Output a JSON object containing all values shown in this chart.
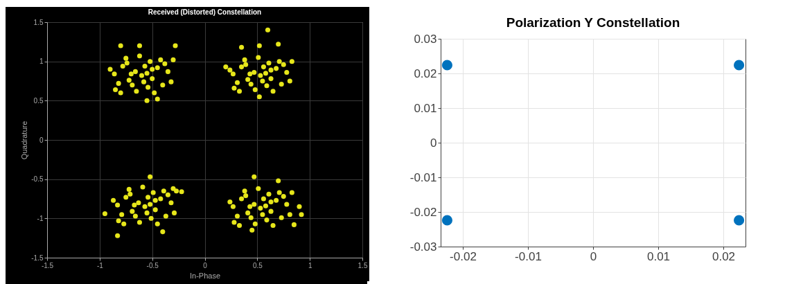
{
  "chart_data": [
    {
      "type": "scatter",
      "title": "Received (Distorted) Constellation",
      "xlabel": "In-Phase",
      "ylabel": "Quadrature",
      "xlim": [
        -1.5,
        1.5
      ],
      "ylim": [
        -1.5,
        1.5
      ],
      "xticks": [
        -1.5,
        -1,
        -0.5,
        0,
        0.5,
        1,
        1.5
      ],
      "yticks": [
        -1.5,
        -1,
        -0.5,
        0,
        0.5,
        1,
        1.5
      ],
      "grid": true,
      "marker": "circle",
      "series": [
        {
          "color": "#e6e61a",
          "x": [
            -0.6,
            -0.55,
            -0.66,
            -0.5,
            -0.72,
            -0.45,
            -0.78,
            -0.4,
            -0.82,
            -0.52,
            -0.65,
            -0.35,
            -0.86,
            -0.48,
            -0.75,
            -0.57,
            -0.69,
            -0.42,
            -0.8,
            -0.32,
            -0.9,
            -0.58,
            -0.62,
            -0.5,
            -0.7,
            -0.38,
            -0.85,
            -0.54,
            -0.74,
            -0.3,
            -0.55,
            -0.45,
            -0.8,
            -0.28,
            -0.62,
            0.53,
            0.58,
            0.47,
            0.63,
            0.41,
            0.68,
            0.35,
            0.73,
            0.31,
            0.61,
            0.48,
            0.78,
            0.27,
            0.65,
            0.38,
            0.56,
            0.44,
            0.71,
            0.33,
            0.81,
            0.24,
            0.55,
            0.51,
            0.63,
            0.43,
            0.75,
            0.28,
            0.59,
            0.39,
            0.83,
            0.6,
            0.52,
            0.7,
            0.35,
            0.2,
            0.52,
            -0.57,
            -0.52,
            -0.63,
            -0.47,
            -0.69,
            -0.42,
            -0.75,
            -0.37,
            -0.79,
            -0.49,
            -0.62,
            -0.32,
            -0.83,
            -0.45,
            -0.72,
            -0.54,
            -0.66,
            -0.39,
            -0.77,
            -0.29,
            -0.87,
            -0.55,
            -0.59,
            -0.47,
            -0.67,
            -0.35,
            -0.82,
            -0.51,
            -0.71,
            -0.27,
            -0.52,
            -0.22,
            -0.83,
            -0.4,
            -0.95,
            -0.3,
            0.53,
            0.58,
            0.47,
            0.63,
            0.41,
            0.68,
            0.35,
            0.73,
            0.31,
            0.61,
            0.48,
            0.78,
            0.27,
            0.65,
            0.38,
            0.56,
            0.44,
            0.71,
            0.33,
            0.81,
            0.24,
            0.55,
            0.51,
            0.63,
            0.43,
            0.75,
            0.28,
            0.59,
            0.39,
            0.83,
            0.47,
            0.7,
            0.9,
            0.92,
            0.45,
            0.85
          ],
          "values": [
            0.82,
            0.85,
            0.87,
            0.78,
            0.76,
            0.92,
            0.94,
            0.7,
            0.72,
            1.0,
            0.62,
            0.87,
            0.84,
            0.6,
            1.04,
            0.94,
            0.7,
            1.02,
            0.6,
            0.74,
            0.9,
            0.74,
            1.07,
            0.9,
            0.84,
            0.97,
            0.64,
            0.67,
            0.98,
            1.02,
            0.5,
            0.52,
            1.2,
            1.2,
            1.2,
            0.82,
            0.85,
            0.86,
            0.78,
            0.77,
            0.91,
            0.93,
            0.71,
            0.73,
            0.98,
            0.64,
            0.86,
            0.84,
            0.62,
            1.02,
            0.93,
            0.71,
            1.0,
            0.62,
            0.75,
            0.89,
            0.75,
            1.05,
            0.89,
            0.84,
            0.96,
            0.66,
            0.69,
            0.96,
            1.0,
            1.4,
            1.2,
            1.22,
            1.18,
            0.93,
            0.55,
            -0.85,
            -0.82,
            -0.8,
            -0.89,
            -0.91,
            -0.75,
            -0.73,
            -0.97,
            -0.95,
            -0.67,
            -1.05,
            -0.8,
            -0.83,
            -1.07,
            -0.63,
            -0.73,
            -0.97,
            -0.65,
            -1.07,
            -0.93,
            -0.77,
            -0.93,
            -0.6,
            -0.77,
            -0.83,
            -0.7,
            -1.03,
            -1.0,
            -0.69,
            -0.65,
            -0.47,
            -0.66,
            -1.22,
            -1.17,
            -0.94,
            -0.62,
            -0.87,
            -0.84,
            -0.82,
            -0.91,
            -0.93,
            -0.77,
            -0.75,
            -0.99,
            -0.97,
            -0.69,
            -1.07,
            -0.82,
            -0.85,
            -1.09,
            -0.65,
            -0.75,
            -0.99,
            -0.67,
            -1.09,
            -0.95,
            -0.79,
            -0.95,
            -0.62,
            -0.79,
            -0.85,
            -0.72,
            -1.05,
            -1.02,
            -0.71,
            -0.67,
            -0.47,
            -0.52,
            -0.85,
            -0.95,
            -1.15,
            -1.08
          ]
        }
      ]
    },
    {
      "type": "scatter",
      "title": "Polarization Y Constellation",
      "xlim": [
        -0.0234,
        0.0234
      ],
      "ylim": [
        -0.03,
        0.03
      ],
      "xticks": [
        -0.02,
        -0.01,
        0,
        0.01,
        0.02
      ],
      "yticks": [
        -0.03,
        -0.02,
        -0.01,
        0,
        0.01,
        0.02,
        0.03
      ],
      "grid": true,
      "marker": "circle",
      "series": [
        {
          "color": "#0072bd",
          "x": [
            -0.0224,
            0.0224,
            -0.0224,
            0.0224
          ],
          "values": [
            0.0224,
            0.0224,
            -0.0224,
            -0.0224
          ]
        }
      ]
    }
  ]
}
